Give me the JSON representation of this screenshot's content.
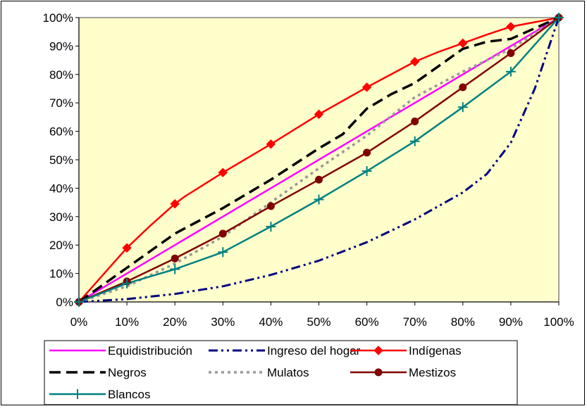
{
  "chart_data": {
    "type": "line",
    "title": "",
    "xlabel": "",
    "ylabel": "",
    "x_ticks": [
      "0%",
      "10%",
      "20%",
      "30%",
      "40%",
      "50%",
      "60%",
      "70%",
      "80%",
      "90%",
      "100%"
    ],
    "y_ticks": [
      "0%",
      "10%",
      "20%",
      "30%",
      "40%",
      "50%",
      "60%",
      "70%",
      "80%",
      "90%",
      "100%"
    ],
    "xlim": [
      0,
      100
    ],
    "ylim": [
      0,
      100
    ],
    "grid": false,
    "plot_background": "#ffffcc",
    "legend_position": "bottom",
    "series": [
      {
        "name": "Equidistribución",
        "color": "#ff00ff",
        "dash": "solid",
        "marker": "none",
        "x": [
          0,
          100
        ],
        "y": [
          0,
          100
        ]
      },
      {
        "name": "Ingreso del hogar",
        "color": "#000080",
        "dash": "dashdotdot",
        "marker": "none",
        "x": [
          0,
          10,
          20,
          30,
          40,
          50,
          60,
          70,
          80,
          85,
          90,
          95,
          100
        ],
        "y": [
          0,
          1,
          2.8,
          5.5,
          9.5,
          14.5,
          21,
          29,
          38.5,
          45,
          56,
          75,
          100
        ]
      },
      {
        "name": "Indígenas",
        "color": "#ff0000",
        "dash": "solid",
        "marker": "diamond",
        "x": [
          0,
          10,
          15,
          20,
          22,
          30,
          40,
          50,
          60,
          70,
          75,
          80,
          85,
          90,
          100
        ],
        "y": [
          0,
          19,
          27,
          34.5,
          37,
          45.5,
          55.5,
          66,
          75.5,
          84.5,
          88,
          91,
          94,
          96.8,
          100
        ],
        "markers_x": [
          0,
          10,
          20,
          30,
          40,
          50,
          60,
          70,
          80,
          90,
          100
        ]
      },
      {
        "name": "Negros",
        "color": "#000000",
        "dash": "longdash",
        "marker": "none",
        "x": [
          0,
          10,
          20,
          30,
          40,
          50,
          55,
          60,
          65,
          70,
          75,
          80,
          85,
          90,
          100
        ],
        "y": [
          0,
          12,
          24,
          33,
          43,
          54,
          59,
          68,
          73,
          77,
          83,
          89,
          91.5,
          92.5,
          100
        ]
      },
      {
        "name": "Mulatos",
        "color": "#999999",
        "dash": "dot",
        "marker": "none",
        "x": [
          0,
          10,
          20,
          30,
          40,
          50,
          60,
          70,
          80,
          90,
          100
        ],
        "y": [
          0,
          5.5,
          13.5,
          23,
          35,
          47,
          58.5,
          72,
          81,
          89,
          100
        ]
      },
      {
        "name": "Mestizos",
        "color": "#800000",
        "dash": "solid",
        "marker": "circle",
        "x": [
          0,
          10,
          20,
          30,
          40,
          50,
          60,
          70,
          80,
          90,
          100
        ],
        "y": [
          0,
          7.2,
          15.3,
          24,
          33.7,
          43,
          52.5,
          63.5,
          75.5,
          87.5,
          100
        ]
      },
      {
        "name": "Blancos",
        "color": "#008080",
        "dash": "solid",
        "marker": "plus",
        "x": [
          0,
          10,
          20,
          30,
          40,
          50,
          60,
          70,
          80,
          90,
          100
        ],
        "y": [
          0,
          6.5,
          11.5,
          17.5,
          26.5,
          36,
          46,
          56.5,
          68.5,
          81,
          100
        ]
      }
    ]
  }
}
